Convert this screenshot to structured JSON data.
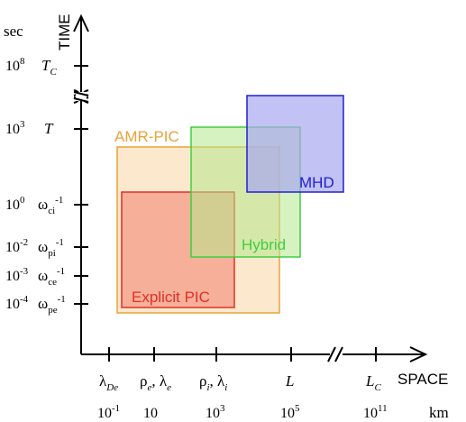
{
  "axes": {
    "y_title": "TIME",
    "y_unit": "sec",
    "x_title": "SPACE",
    "x_unit": "km"
  },
  "y_ticks": [
    {
      "value": "10",
      "sup": "8",
      "symbol": "T",
      "sub": "C",
      "symsup": ""
    },
    {
      "value": "10",
      "sup": "3",
      "symbol": "T",
      "sub": "",
      "symsup": ""
    },
    {
      "value": "10",
      "sup": "0",
      "symbol": "ω",
      "sub": "ci",
      "symsup": "-1"
    },
    {
      "value": "10",
      "sup": "-2",
      "symbol": "ω",
      "sub": "pi",
      "symsup": "-1"
    },
    {
      "value": "10",
      "sup": "-3",
      "symbol": "ω",
      "sub": "ce",
      "symsup": "-1"
    },
    {
      "value": "10",
      "sup": "-4",
      "symbol": "ω",
      "sub": "pe",
      "symsup": "-1"
    }
  ],
  "x_ticks": [
    {
      "value": "10",
      "sup": "-1",
      "symbol": "λ",
      "sub": "De"
    },
    {
      "value": "10",
      "sup": "",
      "symbol": "ρ",
      "sub": "e",
      "symbol2": "λ",
      "sub2": "e"
    },
    {
      "value": "10",
      "sup": "3",
      "symbol": "ρ",
      "sub": "i",
      "symbol2": "λ",
      "sub2": "i"
    },
    {
      "value": "10",
      "sup": "5",
      "symbol": "L",
      "sub": ""
    },
    {
      "value": "10",
      "sup": "11",
      "symbol": "L",
      "sub": "C"
    }
  ],
  "regions": [
    {
      "label": "AMR-PIC",
      "fill": "#fce4c4",
      "stroke": "#e8a33a",
      "text_color": "#e8a33a",
      "opacity": 0.85
    },
    {
      "label": "Explicit PIC",
      "fill": "#f4a48e",
      "stroke": "#e0302a",
      "text_color": "#e0302a",
      "opacity": 0.85
    },
    {
      "label": "Hybrid",
      "fill": "#b4e88e",
      "stroke": "#3ecf3e",
      "text_color": "#3ecf3e",
      "opacity": 0.55
    },
    {
      "label": "MHD",
      "fill": "#a8a8f0",
      "stroke": "#2020d0",
      "text_color": "#2020d0",
      "opacity": 0.7
    }
  ]
}
